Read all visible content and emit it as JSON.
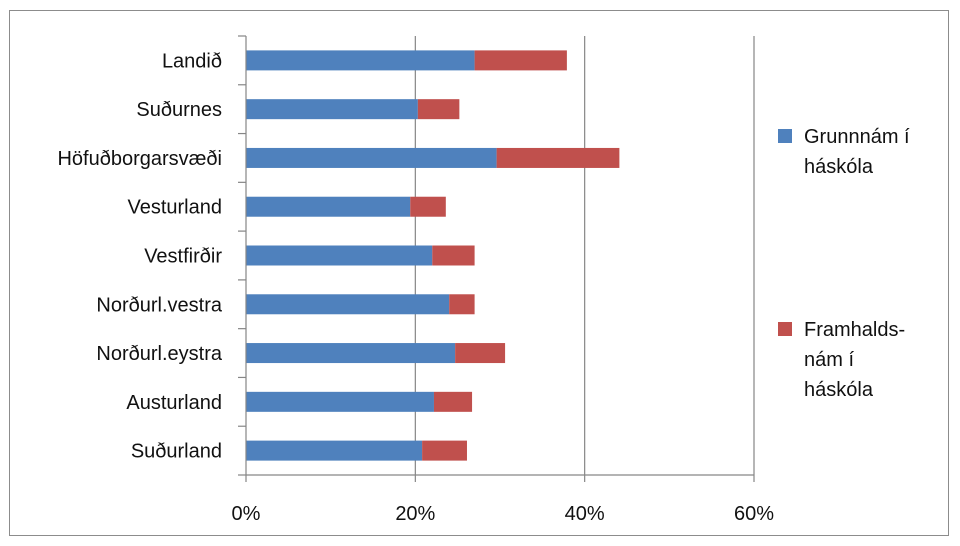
{
  "chart_data": {
    "type": "bar",
    "orientation": "horizontal",
    "stacked": true,
    "title": "",
    "xlabel": "",
    "ylabel": "",
    "categories": [
      "Landið",
      "Suðurnes",
      "Höfuðborgarsvæði",
      "Vesturland",
      "Vestfirðir",
      "Norðurl.vestra",
      "Norðurl.eystra",
      "Austurland",
      "Suðurland"
    ],
    "series": [
      {
        "name": "Grunnnám í háskóla",
        "legend_lines": [
          "Grunnnám í",
          "háskóla"
        ],
        "color": "#4f81bd",
        "values": [
          27.0,
          20.3,
          29.6,
          19.4,
          22.0,
          24.0,
          24.7,
          22.2,
          20.8
        ]
      },
      {
        "name": "Framhalds- nám í háskóla",
        "legend_lines": [
          "Framhalds-",
          "nám í",
          "háskóla"
        ],
        "color": "#c0504d",
        "values": [
          10.9,
          4.9,
          14.5,
          4.2,
          5.0,
          3.0,
          5.9,
          4.5,
          5.3
        ]
      }
    ],
    "xlim": [
      0,
      60
    ],
    "xticks": [
      "0%",
      "20%",
      "40%",
      "60%"
    ],
    "xtick_values": [
      0,
      20,
      40,
      60
    ],
    "grid": "vertical",
    "legend_position": "right"
  }
}
